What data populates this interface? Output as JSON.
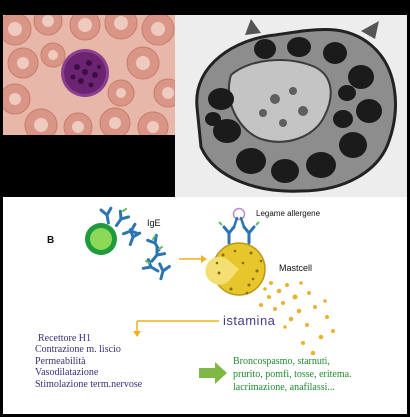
{
  "labels": {
    "b_cell": "B",
    "ige": "IgE",
    "allergen": "Legame allergene",
    "mastcell": "Mastcell",
    "histamine": "istamina"
  },
  "effects": [
    "Recettore H1",
    "Contrazione m. liscio",
    "Permeabilità",
    "Vasodilatazione",
    "Stimolazione term.nervose"
  ],
  "symptoms": [
    "Broncospasmo, starnuti,",
    "prurito, pomfi, tosse, eritema.",
    "lacrimazione, anafilassi..."
  ],
  "colors": {
    "b_cell_ring": "#1f9a3c",
    "b_cell_core": "#8cd95a",
    "mastcell": "#e6c62a",
    "granule": "#e8b330",
    "antibody": "#2d74b3",
    "arrow_yellow": "#f0b21c",
    "arrow_green": "#7fb844",
    "histamine_text": "#4a3a86",
    "symptom_text": "#1e8a2c"
  }
}
